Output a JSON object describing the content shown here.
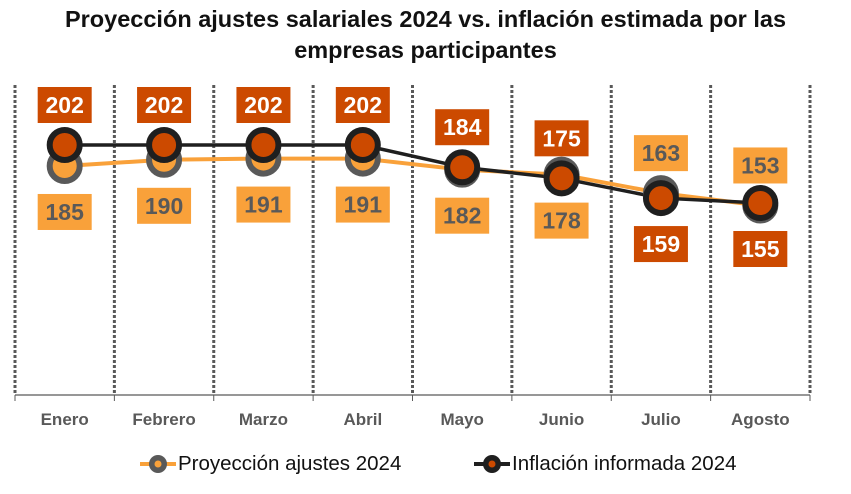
{
  "chart_data": {
    "type": "line",
    "title_lines": [
      "Proyección ajustes salariales  2024 vs. inflación estimada por las",
      "empresas participantes"
    ],
    "categories": [
      "Enero",
      "Febrero",
      "Marzo",
      "Abril",
      "Mayo",
      "Junio",
      "Julio",
      "Agosto"
    ],
    "series": [
      {
        "name": "Proyección ajustes 2024",
        "values": [
          185,
          190,
          191,
          191,
          182,
          178,
          163,
          153
        ],
        "label_positions": [
          "below",
          "below",
          "below",
          "below",
          "below",
          "below",
          "above",
          "above"
        ],
        "line_color": "#F9A13A",
        "marker_fill": "#F9A13A",
        "marker_edge": "#595959",
        "label_bg": "#F9A13A",
        "label_color": "#595959"
      },
      {
        "name": "Inflación informada 2024",
        "values": [
          202,
          202,
          202,
          202,
          184,
          175,
          159,
          155
        ],
        "label_positions": [
          "above",
          "above",
          "above",
          "above",
          "above",
          "above",
          "below",
          "below"
        ],
        "line_color": "#1F1F1F",
        "marker_fill": "#CC4A00",
        "marker_edge": "#1F1F1F",
        "label_bg": "#CC4A00",
        "label_color": "#FFFFFF"
      }
    ],
    "xlabel": "",
    "ylabel": "",
    "y_axis_visible": false,
    "vertical_gridlines": "dotted",
    "legend_position": "bottom"
  }
}
